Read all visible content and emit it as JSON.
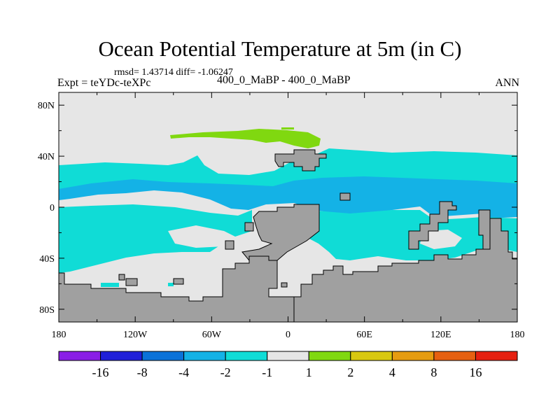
{
  "chart_data": {
    "type": "heatmap",
    "title": "Ocean Potential Temperature at 5m (in C)",
    "stats": "rmsd= 1.43714 diff= -1.06247",
    "left_label": "Expt = teYDc-teXPc",
    "center_label": "400_0_MaBP - 400_0_MaBP",
    "right_label": "ANN",
    "x_ticks": [
      "180",
      "120W",
      "60W",
      "0",
      "60E",
      "120E",
      "180"
    ],
    "y_ticks": [
      "80N",
      "40N",
      "0",
      "40S",
      "80S"
    ],
    "xlim": [
      -180,
      180
    ],
    "ylim": [
      -90,
      90
    ],
    "colorbar": {
      "levels": [
        "-16",
        "-8",
        "-4",
        "-2",
        "-1",
        "1",
        "2",
        "4",
        "8",
        "16"
      ],
      "colors": [
        "#8a1ee6",
        "#2020d8",
        "#0b72d8",
        "#14b2e6",
        "#10dcd6",
        "#e6e6e6",
        "#80d810",
        "#d8c810",
        "#e69c10",
        "#e66010",
        "#e62010"
      ]
    },
    "colors": {
      "land": "#a0a0a0",
      "neutral": "#e6e6e6",
      "cyan": "#10dcd6",
      "blue": "#14b2e6",
      "green": "#80d810"
    }
  }
}
